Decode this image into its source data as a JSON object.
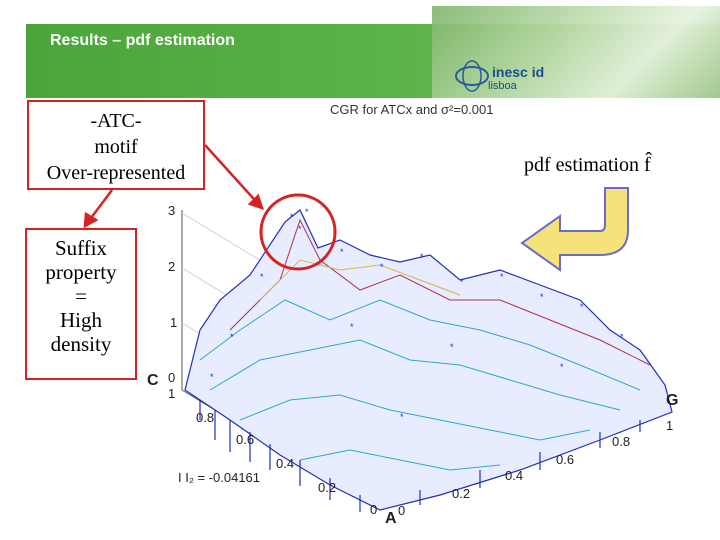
{
  "header": {
    "title": "Results – pdf estimation"
  },
  "logo": {
    "name": "inesc id",
    "sub": "lisboa"
  },
  "callouts": {
    "atc": [
      "-ATC-",
      "motif",
      "Over-represented"
    ],
    "suffix": [
      "Suffix",
      "property",
      "=",
      "High",
      "density"
    ]
  },
  "plot": {
    "title": "CGR for ATCx and σ²=0.001",
    "pdf_label": "pdf estimation f̂",
    "z_ticks": [
      "3",
      "2",
      "1",
      "0"
    ],
    "left_axis_ticks": [
      "1",
      "0.8",
      "0.6",
      "0.4",
      "0.2",
      "0"
    ],
    "right_axis_ticks": [
      "1",
      "0.8",
      "0.6",
      "0.4",
      "0.2",
      "0"
    ],
    "corner_labels": {
      "c": "C",
      "g": "G",
      "a": "A"
    },
    "annotation": "I I₂ = -0.04161"
  },
  "colors": {
    "accent_green": "#4aa63a",
    "callout_red": "#d62222",
    "surface_blue": "#1f2fbf",
    "arrow_yellow": "#f5e27a"
  }
}
